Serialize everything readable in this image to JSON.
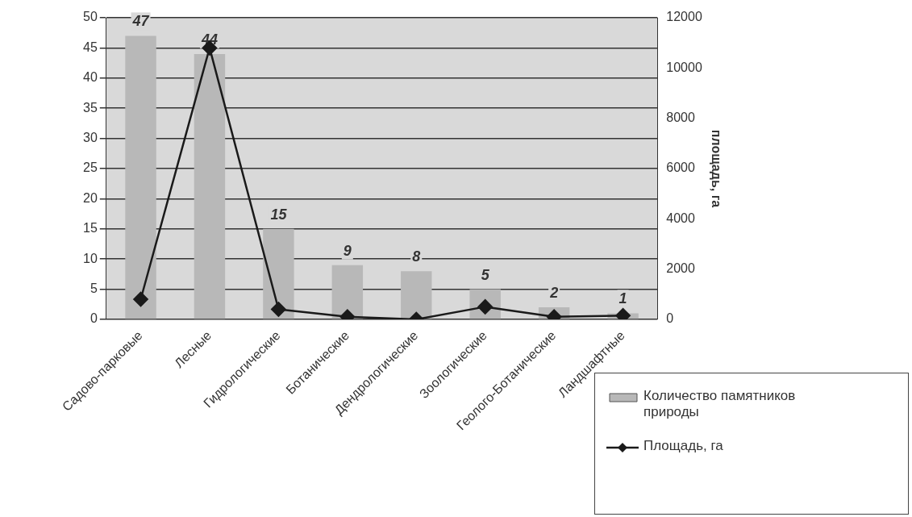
{
  "chart_data": {
    "type": "bar",
    "categories": [
      "Садово-парковые",
      "Лесные",
      "Гидрологические",
      "Ботанические",
      "Дендрологические",
      "Зоологические",
      "Геолого-Ботанические",
      "Ландшафтные"
    ],
    "series": [
      {
        "name": "Количество памятников природы",
        "color": "#b8b8b8",
        "values": [
          47,
          44,
          15,
          9,
          8,
          5,
          2,
          1
        ],
        "value_labels": [
          "47",
          "44",
          "15",
          "9",
          "8",
          "5",
          "2",
          "1"
        ]
      },
      {
        "name": "Площадь, га",
        "type": "line",
        "axis": "y2",
        "color": "#1a1a1a",
        "values": [
          800,
          10800,
          400,
          100,
          0,
          500,
          100,
          150
        ]
      }
    ],
    "ylim": [
      0,
      50
    ],
    "yticks": [
      0,
      5,
      10,
      15,
      20,
      25,
      30,
      35,
      40,
      45,
      50
    ],
    "y2lim": [
      0,
      12000
    ],
    "y2ticks": [
      0,
      2000,
      4000,
      6000,
      8000,
      10000,
      12000
    ],
    "y2label": "площадь, га",
    "grid": "y",
    "legend": "bottom right",
    "marker": "diamond",
    "line_style": "solid"
  }
}
